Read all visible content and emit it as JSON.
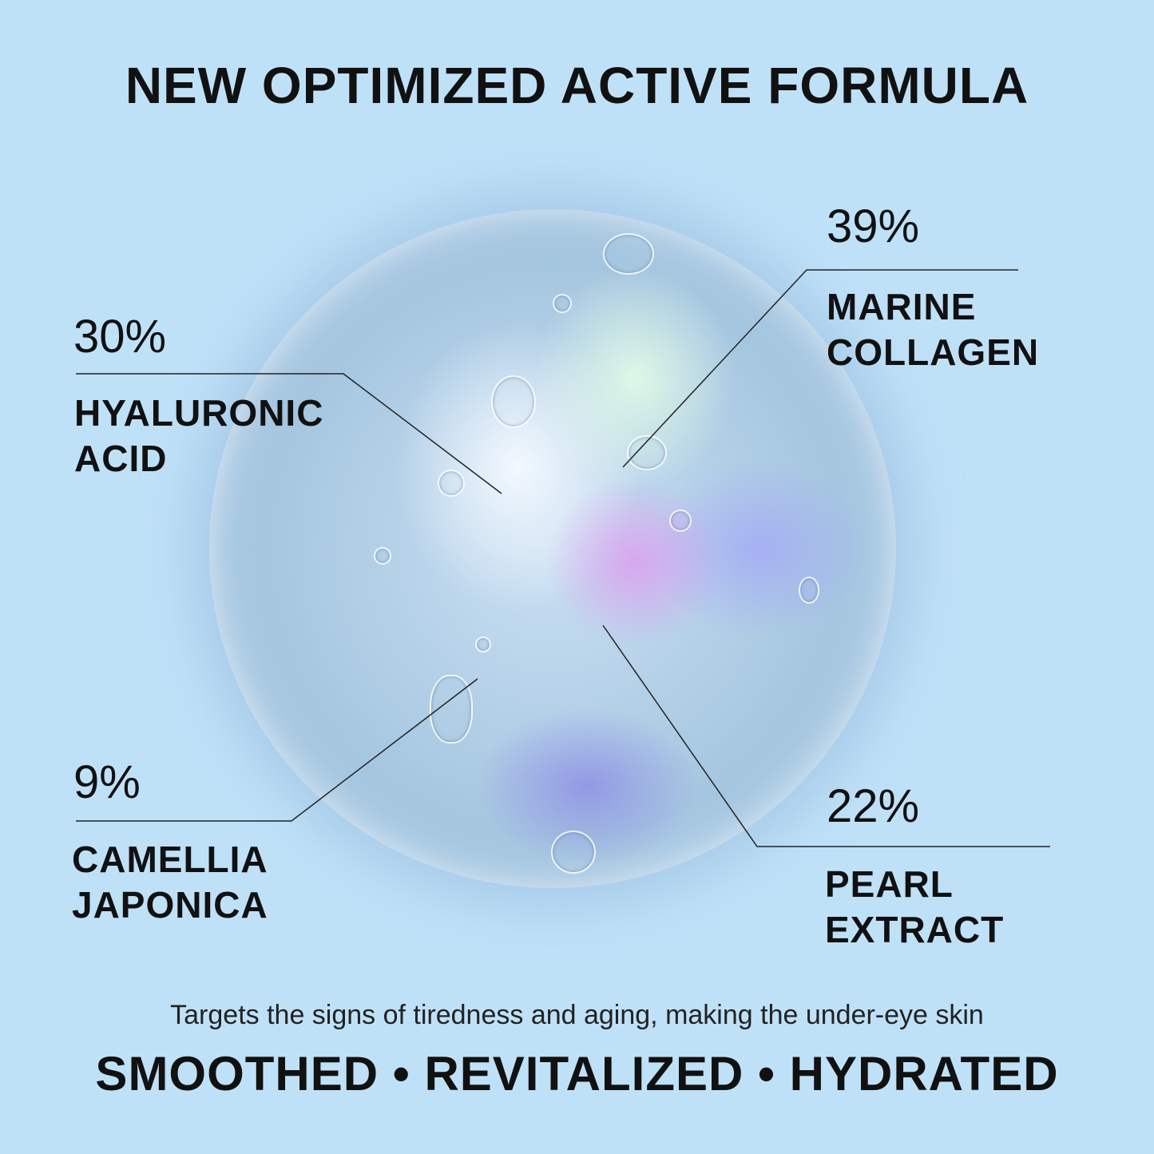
{
  "title": "NEW OPTIMIZED ACTIVE FORMULA",
  "ingredients": [
    {
      "percent": "39%",
      "line1": "MARINE",
      "line2": "COLLAGEN"
    },
    {
      "percent": "30%",
      "line1": "HYALURONIC",
      "line2": "ACID"
    },
    {
      "percent": "9%",
      "line1": "CAMELLIA",
      "line2": "JAPONICA"
    },
    {
      "percent": "22%",
      "line1": "PEARL",
      "line2": "EXTRACT"
    }
  ],
  "tagline": "Targets the signs of tiredness and aging, making the under-eye skin",
  "benefits": "SMOOTHED • REVITALIZED • HYDRATED",
  "colors": {
    "background": "#bfe1f8",
    "text": "#111111"
  }
}
